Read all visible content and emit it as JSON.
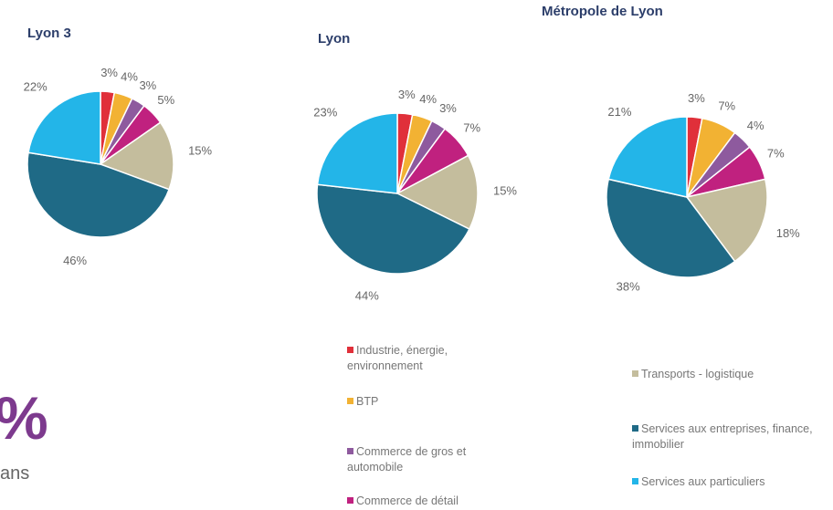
{
  "chart_data": [
    {
      "type": "pie",
      "title": "Lyon 3",
      "values": [
        3,
        4,
        3,
        5,
        15,
        46,
        22
      ],
      "value_labels": [
        "3%",
        "4%",
        "3%",
        "5%",
        "15%",
        "46%",
        "22%"
      ]
    },
    {
      "type": "pie",
      "title": "Lyon",
      "values": [
        3,
        4,
        3,
        7,
        15,
        44,
        23
      ],
      "value_labels": [
        "3%",
        "4%",
        "3%",
        "7%",
        "15%",
        "44%",
        "23%"
      ]
    },
    {
      "type": "pie",
      "title": "Métropole de Lyon",
      "values": [
        3,
        7,
        4,
        7,
        18,
        38,
        21
      ],
      "value_labels": [
        "3%",
        "7%",
        "4%",
        "7%",
        "18%",
        "38%",
        "21%"
      ]
    }
  ],
  "legend": {
    "labels": [
      "Industrie, énergie, environnement",
      "BTP",
      "Commerce de gros et automobile",
      "Commerce de détail",
      "Transports - logistique",
      "Services aux entreprises, finance, immobilier",
      "Services aux particuliers"
    ],
    "colors": [
      "#e0303a",
      "#f2b233",
      "#8e5a9e",
      "#c0217f",
      "#c4bd9d",
      "#1f6a86",
      "#23b5e8"
    ]
  },
  "side_text": {
    "big": "%",
    "small": "ans"
  }
}
